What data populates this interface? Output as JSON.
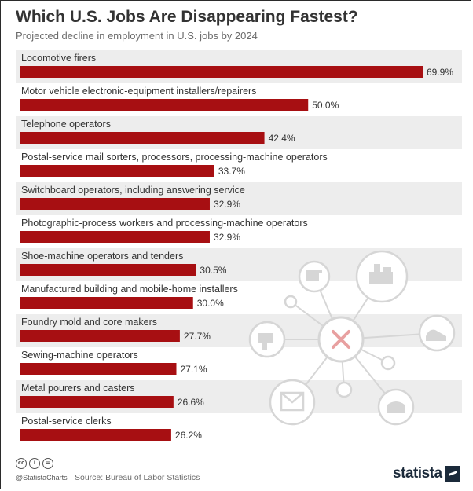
{
  "header": {
    "title": "Which U.S. Jobs Are Disappearing Fastest?",
    "subtitle": "Projected decline in employment in U.S. jobs by 2024"
  },
  "footer": {
    "handle": "@StatistaCharts",
    "source": "Source: Bureau of Labor Statistics",
    "brand": "statista",
    "license_icons": [
      "cc-icon",
      "by-icon",
      "equals-icon"
    ]
  },
  "colors": {
    "bar": "#a70f12",
    "band": "#ededed",
    "background": "#ffffff",
    "decor": "#d6d6d6",
    "decor_x": "#e8a0a0"
  },
  "chart_data": {
    "type": "bar",
    "orientation": "horizontal",
    "categories": [
      "Locomotive firers",
      "Motor vehicle electronic-equipment installers/repairers",
      "Telephone operators",
      "Postal-service mail sorters, processors, processing-machine operators",
      "Switchboard operators, including answering service",
      "Photographic-process workers and processing-machine operators",
      "Shoe-machine operators and tenders",
      "Manufactured building and mobile-home installers",
      "Foundry mold and core makers",
      "Sewing-machine operators",
      "Metal pourers and casters",
      "Postal-service clerks"
    ],
    "values": [
      69.9,
      50.0,
      42.4,
      33.7,
      32.9,
      32.9,
      30.5,
      30.0,
      27.7,
      27.1,
      26.6,
      26.2
    ],
    "value_labels": [
      "69.9%",
      "50.0%",
      "42.4%",
      "33.7%",
      "32.9%",
      "32.9%",
      "30.5%",
      "30.0%",
      "27.7%",
      "27.1%",
      "26.6%",
      "26.2%"
    ],
    "unit": "%",
    "xlim": [
      0,
      69.9
    ],
    "grid": false,
    "legend": "none"
  }
}
